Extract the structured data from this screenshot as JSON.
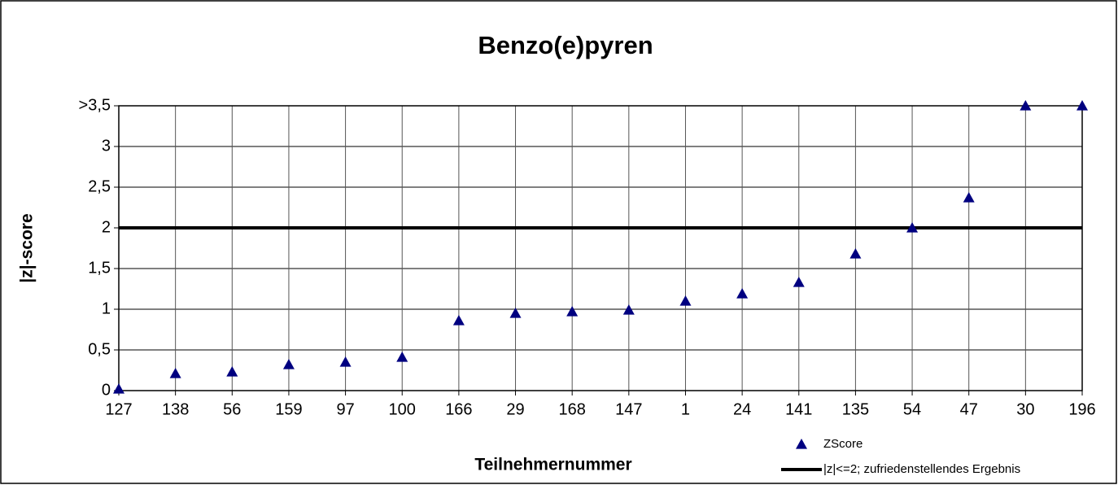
{
  "chart_data": {
    "type": "scatter",
    "title": "Benzo(e)pyren",
    "xlabel": "Teilnehmernummer",
    "ylabel": "|z|-score",
    "categories": [
      "127",
      "138",
      "56",
      "159",
      "97",
      "100",
      "166",
      "29",
      "168",
      "147",
      "1",
      "24",
      "141",
      "135",
      "54",
      "47",
      "30",
      "196"
    ],
    "series": [
      {
        "name": "ZScore",
        "type": "scatter",
        "color": "#000080",
        "values": [
          0.02,
          0.21,
          0.23,
          0.32,
          0.35,
          0.41,
          0.86,
          0.95,
          0.97,
          0.99,
          1.1,
          1.19,
          1.33,
          1.68,
          2.0,
          2.37,
          3.5,
          3.5
        ]
      },
      {
        "name": "|z|<=2; zufriedenstellendes Ergebnis",
        "type": "line",
        "color": "#000000",
        "values": [
          2,
          2,
          2,
          2,
          2,
          2,
          2,
          2,
          2,
          2,
          2,
          2,
          2,
          2,
          2,
          2,
          2,
          2
        ]
      }
    ],
    "ylim": [
      0,
      3.5
    ],
    "yticks": [
      0,
      {
        "value": 0.5,
        "label": "0,5"
      },
      1,
      {
        "value": 1.5,
        "label": "1,5"
      },
      2,
      {
        "value": 2.5,
        "label": "2,5"
      },
      3,
      {
        "value": 3.5,
        "label": ">3,5"
      }
    ],
    "grid": true,
    "legend": "lower right"
  }
}
